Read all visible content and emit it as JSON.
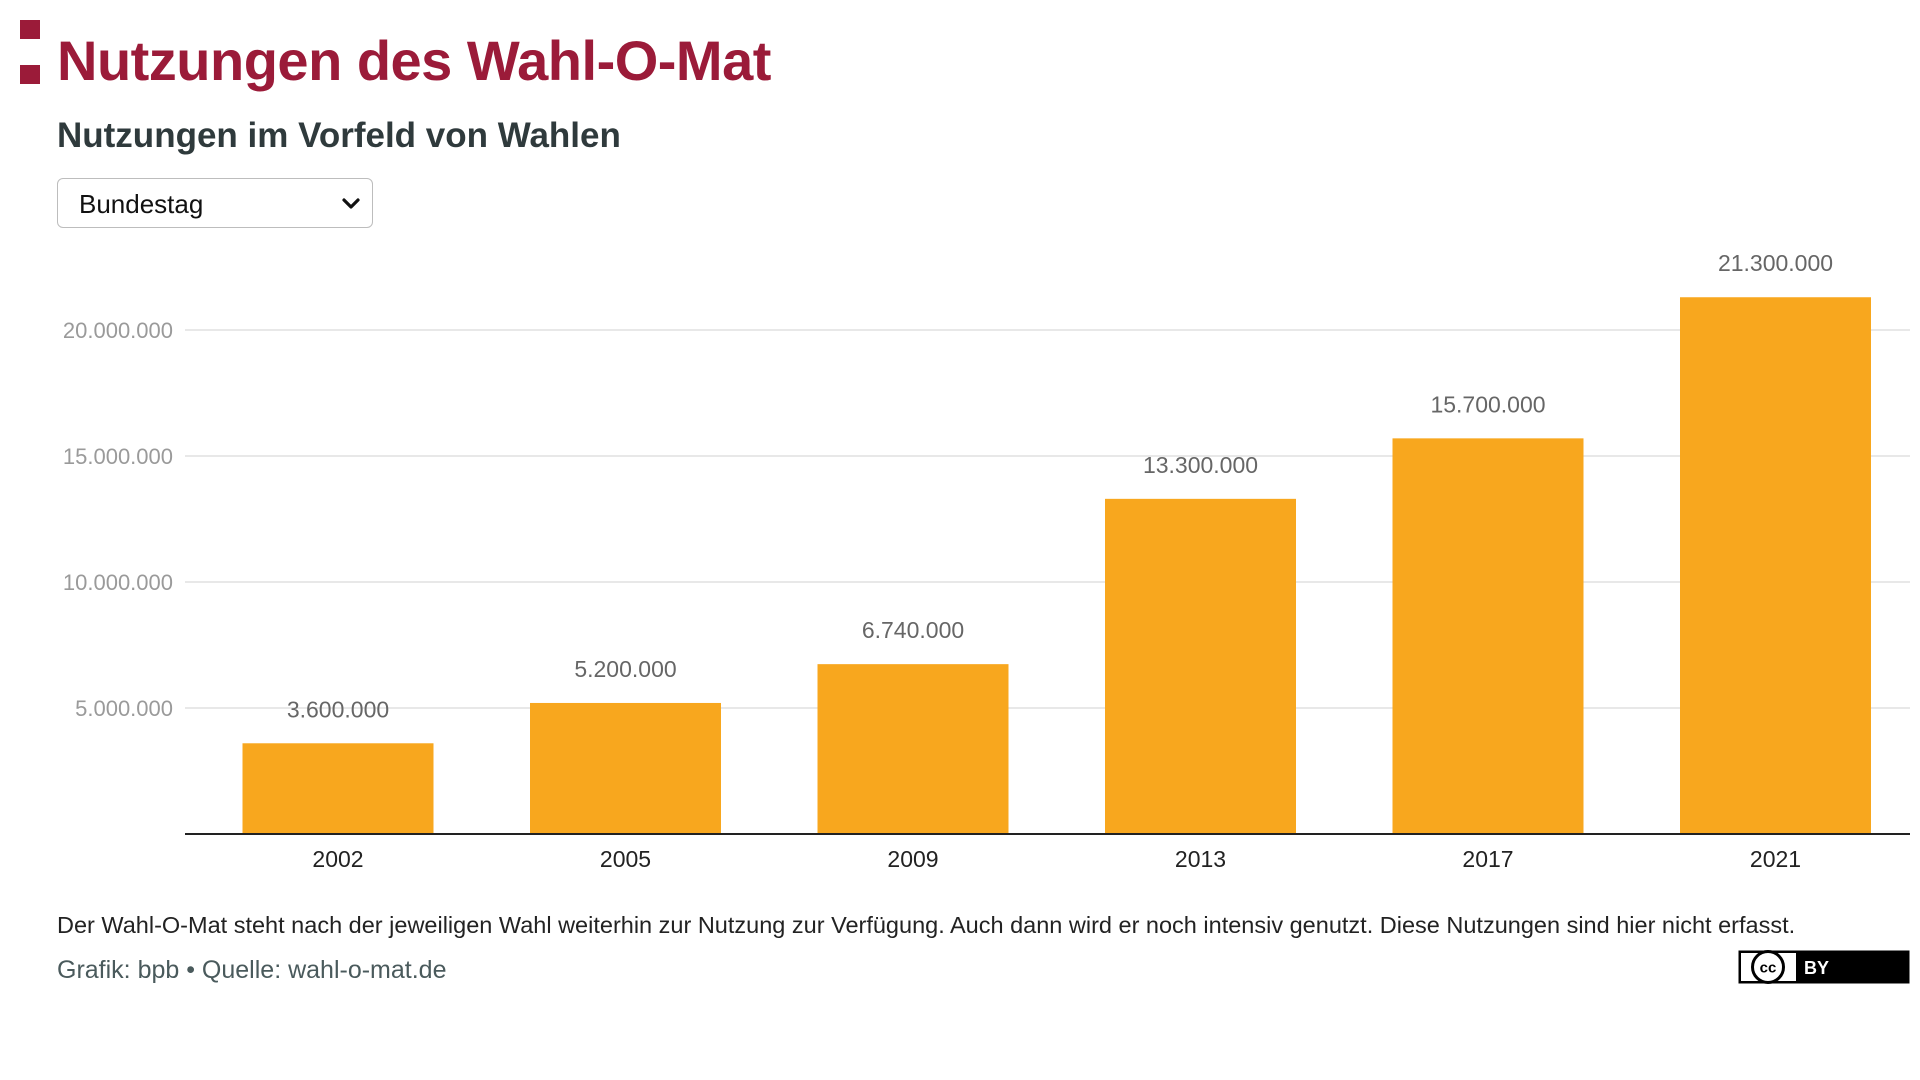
{
  "header": {
    "title": "Nutzungen des Wahl-O-Mat",
    "subtitle": "Nutzungen im Vorfeld von Wahlen"
  },
  "filter": {
    "selected": "Bundestag"
  },
  "colors": {
    "brand": "#9b1b39",
    "bar": "#f8a71e",
    "grid": "#e0e0e0",
    "axis": "#222222",
    "y_tick_text": "#9a9a9a",
    "value_label_text": "#666666"
  },
  "chart_data": {
    "type": "bar",
    "categories": [
      "2002",
      "2005",
      "2009",
      "2013",
      "2017",
      "2021"
    ],
    "values": [
      3600000,
      5200000,
      6740000,
      13300000,
      15700000,
      21300000
    ],
    "value_labels": [
      "3.600.000",
      "5.200.000",
      "6.740.000",
      "13.300.000",
      "15.700.000",
      "21.300.000"
    ],
    "y_ticks": [
      5000000,
      10000000,
      15000000,
      20000000
    ],
    "y_tick_labels": [
      "5.000.000",
      "10.000.000",
      "15.000.000",
      "20.000.000"
    ],
    "ylim": [
      0,
      20000000
    ],
    "grid": true,
    "legend": false,
    "title": "Nutzungen im Vorfeld von Wahlen",
    "xlabel": "",
    "ylabel": ""
  },
  "footer": {
    "note": "Der Wahl-O-Mat steht nach der jeweiligen Wahl weiterhin zur Nutzung zur Verfügung. Auch dann wird er noch intensiv genutzt. Diese Nutzungen sind hier nicht erfasst.",
    "source": "Grafik: bpb • Quelle: wahl-o-mat.de",
    "license": {
      "cc": "cc",
      "by": "BY"
    }
  }
}
